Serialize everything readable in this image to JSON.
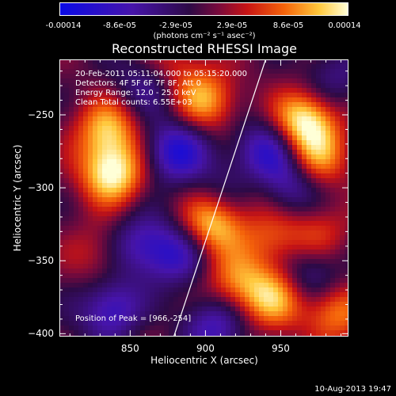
{
  "chart_data": {
    "type": "heatmap",
    "title": "Reconstructed RHESSI Image",
    "xlabel": "Heliocentric X (arcsec)",
    "ylabel": "Heliocentric Y (arcsec)",
    "xlim": [
      803,
      995
    ],
    "ylim": [
      -402,
      -212
    ],
    "xticks": [
      850,
      900,
      950
    ],
    "yticks": [
      -250,
      -300,
      -350,
      -400
    ],
    "colorbar": {
      "ticks": [
        "-0.00014",
        "-8.6e-05",
        "-2.9e-05",
        "2.9e-05",
        "8.6e-05",
        "0.00014"
      ],
      "units_label": "(photons cm⁻² s⁻¹ asec⁻²)",
      "range": [
        -0.00014,
        0.00014
      ]
    },
    "annotations": [
      "20-Feb-2011 05:11:04.000 to 05:15:20.000",
      "Detectors: 4F 5F 6F 7F 8F, Att 0",
      "Energy Range: 12.0 - 25.0 keV",
      "Clean    Total counts: 6.55E+03"
    ],
    "peak_label": "Position of Peak = [966,-254]",
    "peak": {
      "x": 966,
      "y": -254
    },
    "limb_line": [
      {
        "x": 879,
        "y": -402
      },
      {
        "x": 940,
        "y": -212
      }
    ],
    "sources": [
      {
        "x": 838,
        "y": -290,
        "value": 1.0
      },
      {
        "x": 835,
        "y": -260,
        "value": 0.75
      },
      {
        "x": 900,
        "y": -240,
        "value": 0.7
      },
      {
        "x": 966,
        "y": -254,
        "value": 1.0
      },
      {
        "x": 975,
        "y": -280,
        "value": 0.6
      },
      {
        "x": 905,
        "y": -325,
        "value": 0.85
      },
      {
        "x": 945,
        "y": -335,
        "value": 0.45
      },
      {
        "x": 975,
        "y": -330,
        "value": 0.4
      },
      {
        "x": 830,
        "y": -345,
        "value": 0.35
      },
      {
        "x": 920,
        "y": -365,
        "value": 0.55
      },
      {
        "x": 945,
        "y": -375,
        "value": 0.75
      },
      {
        "x": 985,
        "y": -385,
        "value": 0.65
      },
      {
        "x": 850,
        "y": -390,
        "value": 0.3
      },
      {
        "x": 880,
        "y": -215,
        "value": 0.35
      },
      {
        "x": 935,
        "y": -300,
        "value": 0.3
      },
      {
        "x": 880,
        "y": -275,
        "value": -0.8
      },
      {
        "x": 940,
        "y": -275,
        "value": -0.7
      },
      {
        "x": 955,
        "y": -300,
        "value": -0.6
      },
      {
        "x": 855,
        "y": -340,
        "value": -0.55
      },
      {
        "x": 880,
        "y": -345,
        "value": -0.6
      },
      {
        "x": 840,
        "y": -385,
        "value": -0.9
      },
      {
        "x": 905,
        "y": -395,
        "value": -0.6
      },
      {
        "x": 970,
        "y": -360,
        "value": -0.5
      },
      {
        "x": 860,
        "y": -230,
        "value": -0.4
      },
      {
        "x": 985,
        "y": -225,
        "value": -0.35
      },
      {
        "x": 915,
        "y": -300,
        "value": -0.3
      }
    ]
  },
  "footer_timestamp": "10-Aug-2013 19:47"
}
